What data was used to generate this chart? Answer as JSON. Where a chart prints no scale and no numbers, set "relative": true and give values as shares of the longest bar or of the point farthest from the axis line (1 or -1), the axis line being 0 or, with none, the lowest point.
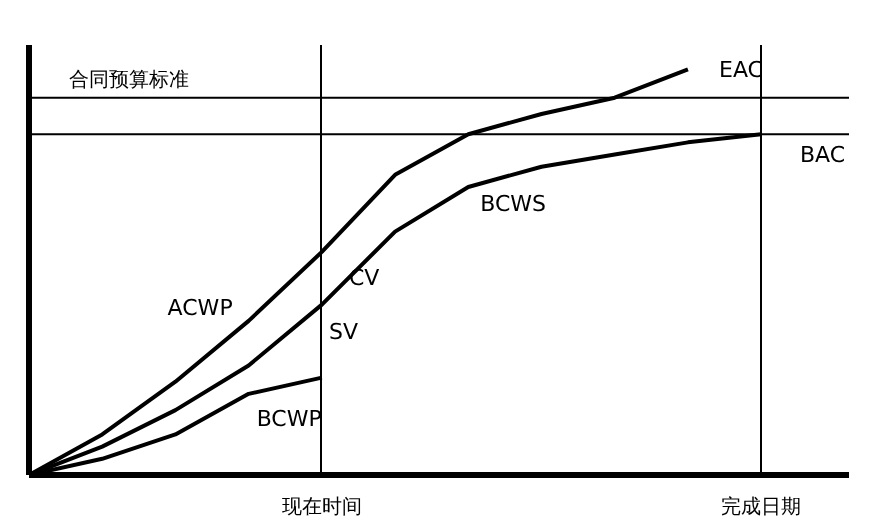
{
  "chart_data": {
    "type": "line",
    "relative": true,
    "categories": [
      null,
      null,
      null,
      null,
      "现在时间",
      null,
      null,
      null,
      null,
      null,
      "完成日期",
      null
    ],
    "grid": "x",
    "series": [
      {
        "name": "ACWP",
        "color": "#000000",
        "values": [
          0,
          0.1,
          0.23,
          0.38,
          0.55,
          0.74,
          0.84,
          0.89,
          0.93,
          1.0,
          null,
          null
        ]
      },
      {
        "name": "BCWS",
        "color": "#000000",
        "values": [
          0,
          0.07,
          0.16,
          0.27,
          0.42,
          0.6,
          0.71,
          0.76,
          0.79,
          0.82,
          0.84,
          null
        ]
      },
      {
        "name": "BCWP",
        "color": "#000000",
        "values": [
          0,
          0.04,
          0.1,
          0.2,
          0.24,
          null,
          null,
          null,
          null,
          null,
          null,
          null
        ]
      }
    ],
    "ref_lines": [
      {
        "axis": "y",
        "value": 0.93,
        "label": "合同预算标准",
        "color": "#000000"
      },
      {
        "axis": "y",
        "value": 0.84,
        "label": "BAC",
        "color": "#000000"
      }
    ],
    "annotations": [
      "EAC",
      "SV",
      "CV"
    ]
  }
}
